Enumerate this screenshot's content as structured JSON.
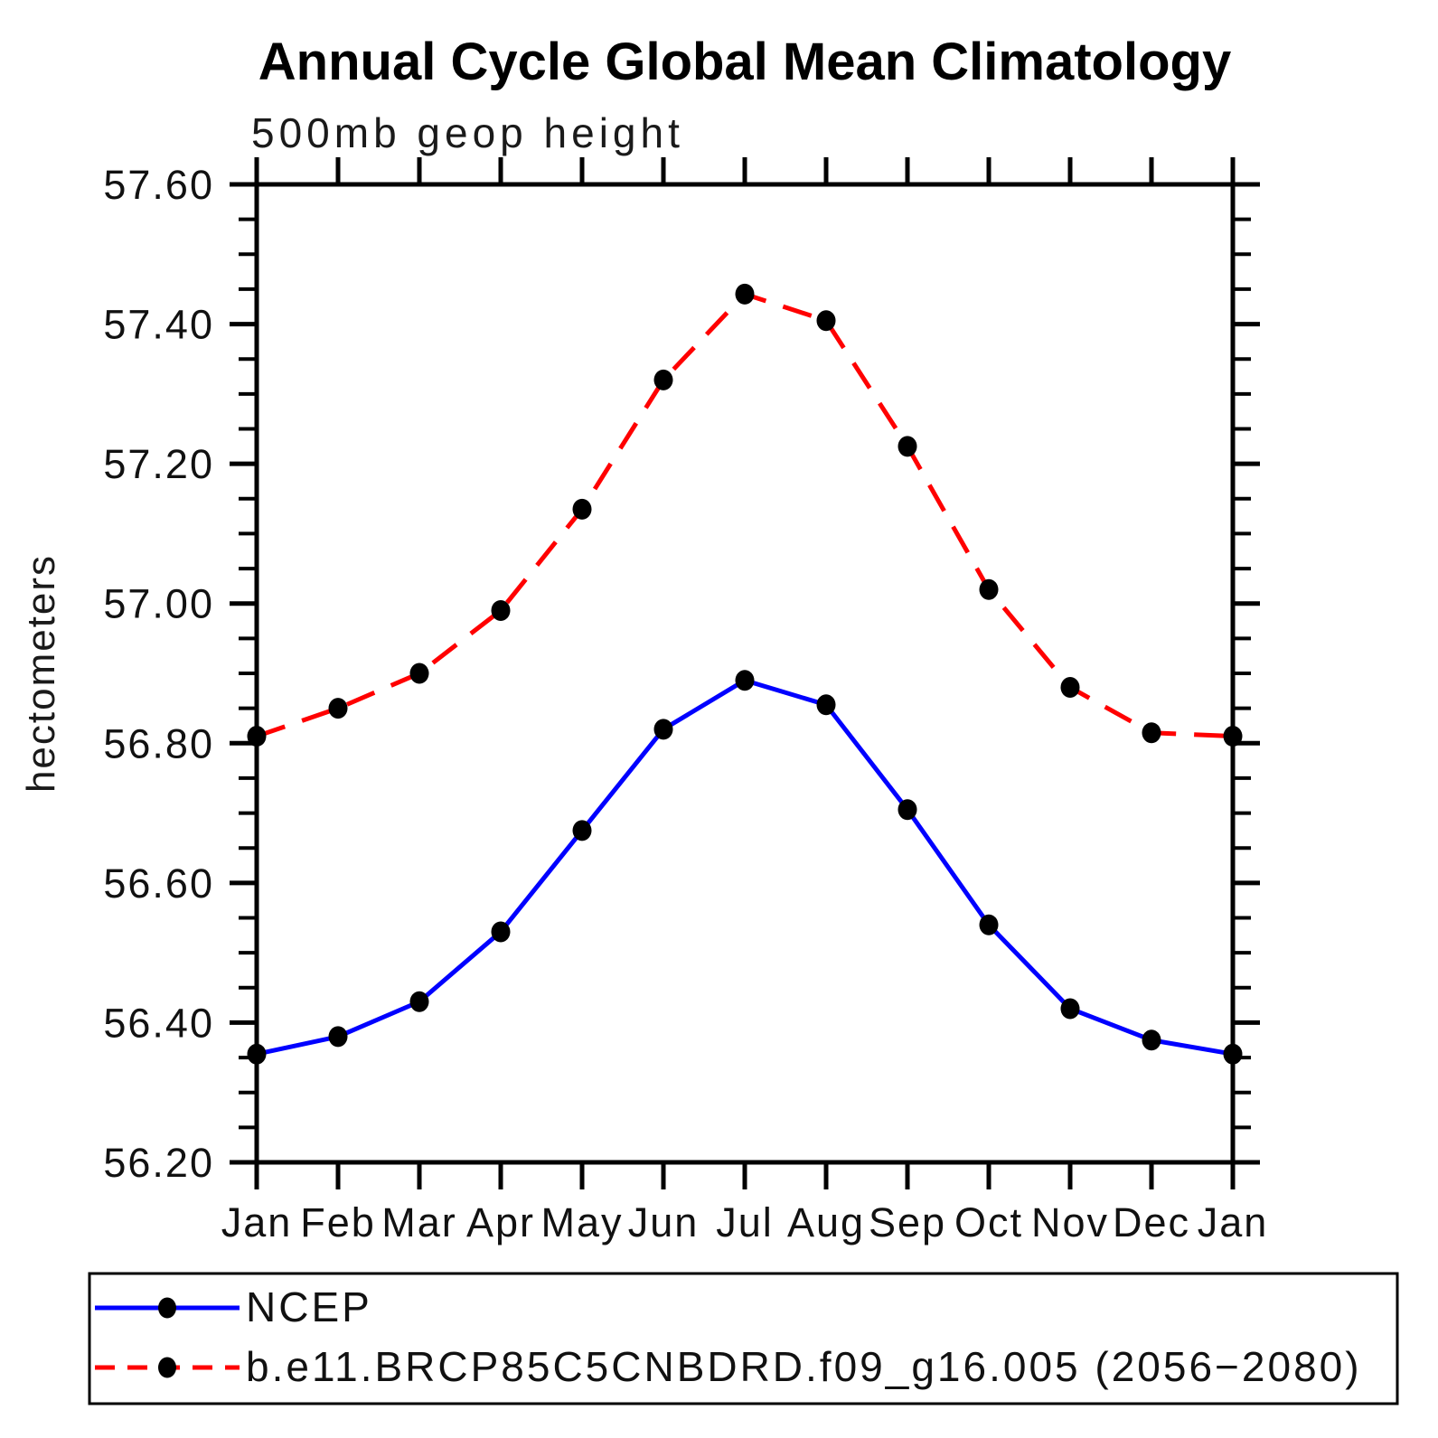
{
  "chart_data": {
    "type": "line",
    "title": "Annual Cycle Global Mean Climatology",
    "subtitle": "500mb geop height",
    "ylabel": "hectometers",
    "xlabel": "",
    "categories": [
      "Jan",
      "Feb",
      "Mar",
      "Apr",
      "May",
      "Jun",
      "Jul",
      "Aug",
      "Sep",
      "Oct",
      "Nov",
      "Dec",
      "Jan"
    ],
    "series": [
      {
        "name": "NCEP",
        "color": "#0000ff",
        "line_style": "solid",
        "marker": "dot",
        "marker_color": "#000000",
        "values": [
          56.355,
          56.38,
          56.43,
          56.53,
          56.675,
          56.82,
          56.89,
          56.855,
          56.705,
          56.54,
          56.42,
          56.375,
          56.355
        ]
      },
      {
        "name": "b.e11.BRCP85C5CNBDRD.f09_g16.005 (2056−2080)",
        "color": "#ff0000",
        "line_style": "dashed",
        "marker": "dot",
        "marker_color": "#000000",
        "values": [
          56.81,
          56.85,
          56.9,
          56.99,
          57.135,
          57.32,
          57.443,
          57.405,
          57.225,
          57.02,
          56.88,
          56.815,
          56.81
        ]
      }
    ],
    "ylim": [
      56.2,
      57.6
    ],
    "ytick_step": 0.2,
    "ytick_minor_step": 0.05,
    "ytick_labels": [
      "56.20",
      "56.40",
      "56.60",
      "56.80",
      "57.00",
      "57.20",
      "57.40",
      "57.60"
    ],
    "grid": false,
    "legend_position": "bottom",
    "axis_color": "#000000",
    "background_color": "#ffffff"
  }
}
